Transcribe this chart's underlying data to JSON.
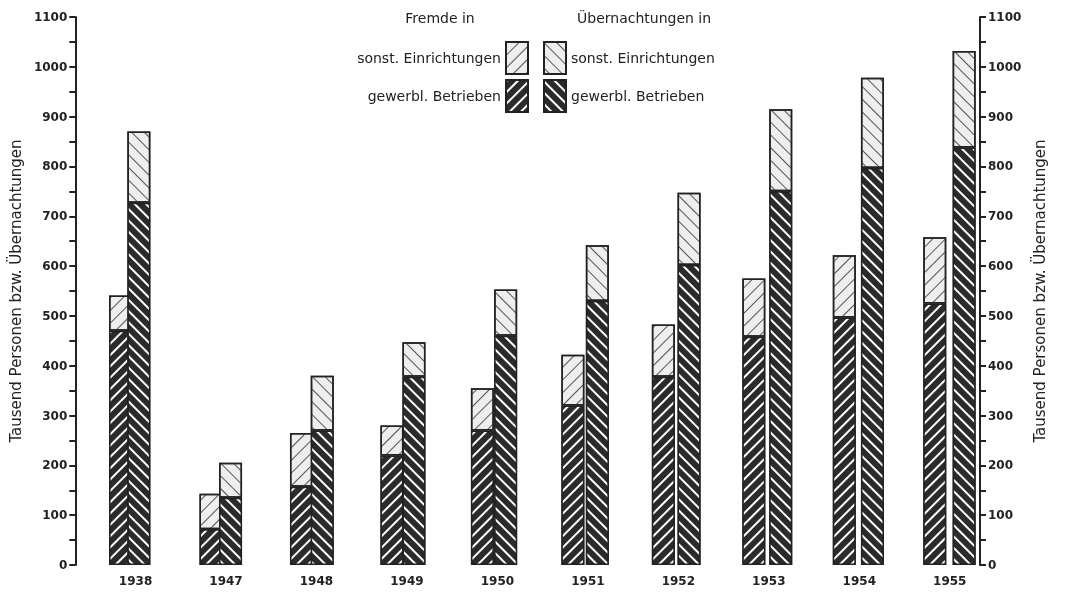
{
  "chart_data": [
    {
      "type": "bar",
      "stacked": true,
      "ylabel": "Tausend Personen bzw. Übernachtungen",
      "y2label": "Tausend Personen bzw. Übernachtungen",
      "legend_title": "Fremde in",
      "categories": [
        "1938",
        "1947",
        "1948",
        "1949",
        "1950",
        "1951",
        "1952",
        "1953",
        "1954",
        "1955"
      ],
      "series": [
        {
          "name": "gewerbl. Betrieben",
          "color": "#2b2b2b",
          "values": [
            470,
            72,
            157,
            220,
            270,
            320,
            378,
            458,
            497,
            525
          ]
        },
        {
          "name": "sonst. Einrichtungen",
          "color": "#eeeeee",
          "values": [
            71,
            71,
            108,
            60,
            85,
            102,
            105,
            117,
            125,
            133
          ]
        }
      ],
      "ylim": [
        0,
        1100
      ],
      "yticks": [
        0,
        {
          "value": 50,
          "label": null
        },
        100,
        {
          "value": 150,
          "label": null
        },
        200,
        {
          "value": 250,
          "label": null
        },
        300,
        {
          "value": 350,
          "label": null
        },
        400,
        {
          "value": 450,
          "label": null
        },
        500,
        {
          "value": 550,
          "label": null
        },
        600,
        {
          "value": 650,
          "label": null
        },
        700,
        {
          "value": 750,
          "label": null
        },
        800,
        {
          "value": 850,
          "label": null
        },
        900,
        {
          "value": 950,
          "label": null
        },
        1000,
        {
          "value": 1050,
          "label": null
        },
        1100
      ],
      "y2lim": [
        0,
        1100
      ],
      "y2ticks": [
        0,
        {
          "value": 50,
          "label": null
        },
        100,
        {
          "value": 150,
          "label": null
        },
        200,
        {
          "value": 250,
          "label": null
        },
        300,
        {
          "value": 350,
          "label": null
        },
        400,
        {
          "value": 450,
          "label": null
        },
        500,
        {
          "value": 550,
          "label": null
        },
        600,
        {
          "value": 650,
          "label": null
        },
        700,
        {
          "value": 750,
          "label": null
        },
        800,
        {
          "value": 850,
          "label": null
        },
        900,
        {
          "value": 950,
          "label": null
        },
        1000,
        {
          "value": 1050,
          "label": null
        },
        1100
      ],
      "grid": false,
      "legend": "top"
    },
    {
      "type": "bar",
      "stacked": true,
      "legend_title": "Übernachtungen in",
      "categories": [
        "1938",
        "1947",
        "1948",
        "1949",
        "1950",
        "1951",
        "1952",
        "1953",
        "1954",
        "1955"
      ],
      "series": [
        {
          "name": "gewerbl. Betrieben",
          "color": "#2b2b2b",
          "values": [
            727,
            135,
            270,
            378,
            460,
            530,
            602,
            750,
            797,
            838
          ]
        },
        {
          "name": "sonst. Einrichtungen",
          "color": "#eeeeee",
          "values": [
            143,
            70,
            110,
            69,
            93,
            112,
            145,
            165,
            181,
            194
          ]
        }
      ],
      "ylim": [
        0,
        1100
      ],
      "tick_labels": false,
      "grid": false,
      "legend": "top"
    }
  ]
}
